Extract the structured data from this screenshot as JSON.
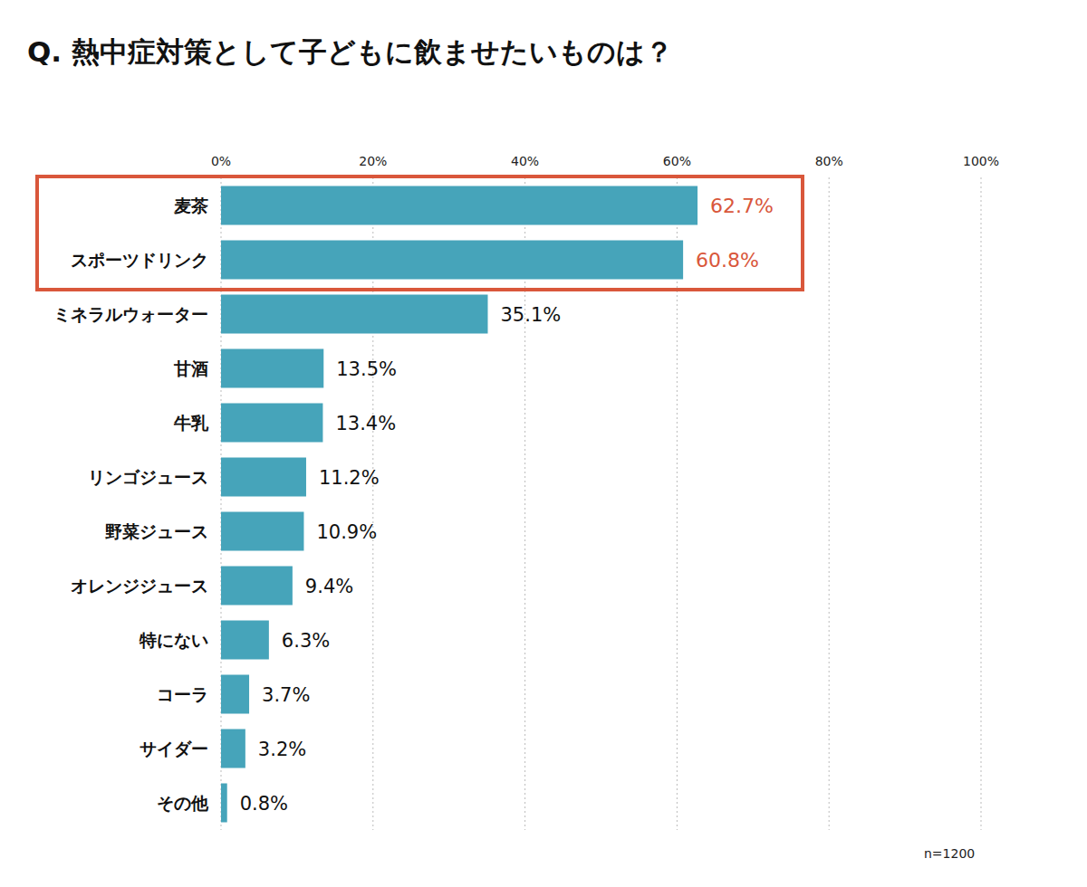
{
  "chart_data": {
    "type": "bar",
    "title": "Q.  熱中症対策として子どもに飲ませたいものは？",
    "orientation": "horizontal",
    "categories": [
      "麦茶",
      "スポーツドリンク",
      "ミネラルウォーター",
      "甘酒",
      "牛乳",
      "リンゴジュース",
      "野菜ジュース",
      "オレンジジュース",
      "特にない",
      "コーラ",
      "サイダー",
      "その他"
    ],
    "values": [
      62.7,
      60.8,
      35.1,
      13.5,
      13.4,
      11.2,
      10.9,
      9.4,
      6.3,
      3.7,
      3.2,
      0.8
    ],
    "value_labels": [
      "62.7%",
      "60.8%",
      "35.1%",
      "13.5%",
      "13.4%",
      "11.2%",
      "10.9%",
      "9.4%",
      "6.3%",
      "3.7%",
      "3.2%",
      "0.8%"
    ],
    "data_labels": true,
    "color": "#46a4ba",
    "xlim": [
      0,
      100
    ],
    "xticks": [
      {
        "value": 0,
        "label": "0%"
      },
      {
        "value": 20,
        "label": "20%"
      },
      {
        "value": 40,
        "label": "40%"
      },
      {
        "value": 60,
        "label": "60%"
      },
      {
        "value": 80,
        "label": "80%"
      },
      {
        "value": 100,
        "label": "100%"
      }
    ],
    "grid": true,
    "annotation": "n=1200"
  }
}
